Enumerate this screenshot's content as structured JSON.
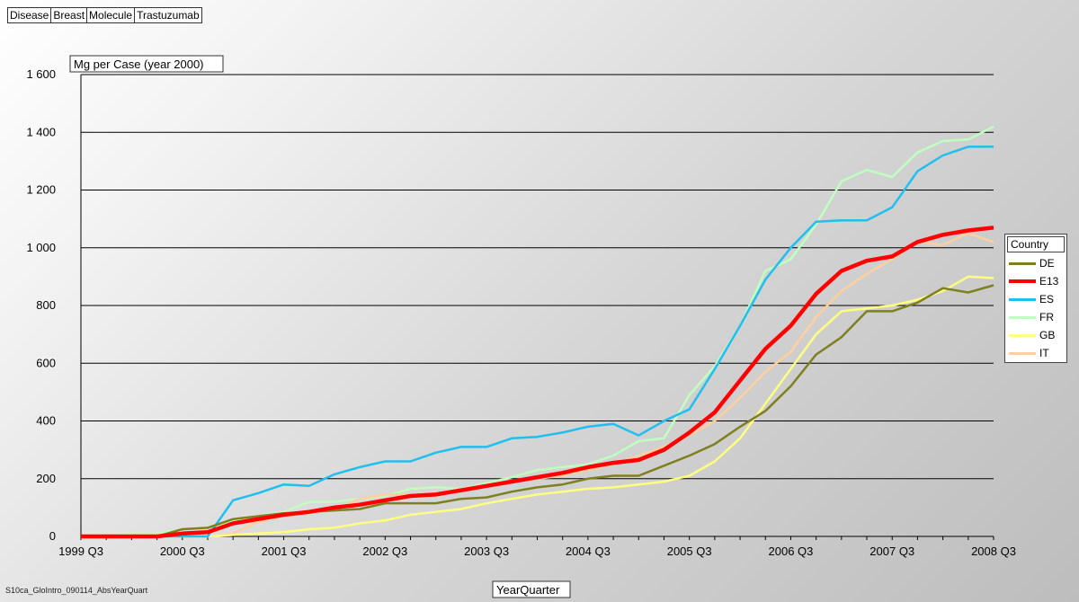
{
  "filters": [
    {
      "label": "Disease"
    },
    {
      "label": "Breast"
    },
    {
      "label": "Molecule"
    },
    {
      "label": "Trastuzumab"
    }
  ],
  "footer_note": "S10ca_GloIntro_090114_AbsYearQuart",
  "colors": {
    "DE": "#7f7f1f",
    "E13": "#ff0000",
    "ES": "#1fbfef",
    "FR": "#bfffbf",
    "GB": "#ffff7f",
    "IT": "#ffcfa0"
  },
  "chart_data": {
    "type": "line",
    "title": "Mg per Case (year 2000)",
    "xlabel": "YearQuarter",
    "ylabel": "",
    "ylim": [
      0,
      1600
    ],
    "yticks": [
      0,
      200,
      400,
      600,
      800,
      1000,
      1200,
      1400,
      1600
    ],
    "ytick_labels": [
      "0",
      "200",
      "400",
      "600",
      "800",
      "1 000",
      "1 200",
      "1 400",
      "1 600"
    ],
    "x": [
      "1999 Q3",
      "1999 Q4",
      "2000 Q1",
      "2000 Q2",
      "2000 Q3",
      "2000 Q4",
      "2001 Q1",
      "2001 Q2",
      "2001 Q3",
      "2001 Q4",
      "2002 Q1",
      "2002 Q2",
      "2002 Q3",
      "2002 Q4",
      "2003 Q1",
      "2003 Q2",
      "2003 Q3",
      "2003 Q4",
      "2004 Q1",
      "2004 Q2",
      "2004 Q3",
      "2004 Q4",
      "2005 Q1",
      "2005 Q2",
      "2005 Q3",
      "2005 Q4",
      "2006 Q1",
      "2006 Q2",
      "2006 Q3",
      "2006 Q4",
      "2007 Q1",
      "2007 Q2",
      "2007 Q3",
      "2007 Q4",
      "2008 Q1",
      "2008 Q2",
      "2008 Q3"
    ],
    "xtick_labels": [
      "1999 Q3",
      "2000 Q3",
      "2001 Q3",
      "2002 Q3",
      "2003 Q3",
      "2004 Q3",
      "2005 Q3",
      "2006 Q3",
      "2007 Q3",
      "2008 Q3"
    ],
    "legend_title": "Country",
    "legend_position": "right",
    "grid": true,
    "series": [
      {
        "name": "DE",
        "values": [
          0,
          0,
          0,
          0,
          25,
          30,
          60,
          70,
          80,
          85,
          90,
          95,
          115,
          115,
          115,
          130,
          135,
          155,
          170,
          180,
          200,
          210,
          210,
          245,
          280,
          320,
          380,
          435,
          520,
          630,
          690,
          780,
          780,
          810,
          860,
          845,
          870
        ]
      },
      {
        "name": "E13",
        "values": [
          0,
          0,
          0,
          0,
          10,
          15,
          45,
          60,
          75,
          85,
          100,
          110,
          125,
          140,
          145,
          160,
          175,
          190,
          205,
          220,
          240,
          255,
          265,
          300,
          360,
          430,
          540,
          650,
          730,
          840,
          920,
          955,
          970,
          1020,
          1045,
          1060,
          1070
        ]
      },
      {
        "name": "ES",
        "values": [
          0,
          0,
          0,
          0,
          0,
          0,
          125,
          150,
          180,
          175,
          215,
          240,
          260,
          260,
          290,
          310,
          310,
          340,
          345,
          360,
          380,
          390,
          350,
          400,
          440,
          580,
          730,
          890,
          1000,
          1090,
          1095,
          1095,
          1140,
          1265,
          1320,
          1350,
          1350
        ]
      },
      {
        "name": "FR",
        "values": [
          0,
          0,
          10,
          10,
          25,
          30,
          55,
          70,
          85,
          120,
          120,
          130,
          140,
          165,
          170,
          165,
          185,
          205,
          230,
          240,
          250,
          280,
          330,
          340,
          490,
          590,
          730,
          920,
          960,
          1080,
          1230,
          1270,
          1245,
          1330,
          1370,
          1375,
          1420
        ]
      },
      {
        "name": "GB",
        "values": [
          0,
          0,
          0,
          0,
          0,
          0,
          5,
          10,
          15,
          25,
          30,
          45,
          55,
          75,
          85,
          95,
          115,
          130,
          145,
          155,
          165,
          170,
          180,
          190,
          210,
          260,
          340,
          460,
          580,
          700,
          780,
          790,
          800,
          820,
          850,
          900,
          895
        ]
      },
      {
        "name": "IT",
        "values": [
          0,
          0,
          0,
          0,
          0,
          0,
          10,
          50,
          70,
          80,
          95,
          130,
          145,
          145,
          150,
          160,
          170,
          190,
          200,
          210,
          230,
          250,
          280,
          310,
          350,
          400,
          480,
          570,
          640,
          760,
          850,
          910,
          960,
          1020,
          1010,
          1050,
          1020
        ]
      }
    ]
  }
}
